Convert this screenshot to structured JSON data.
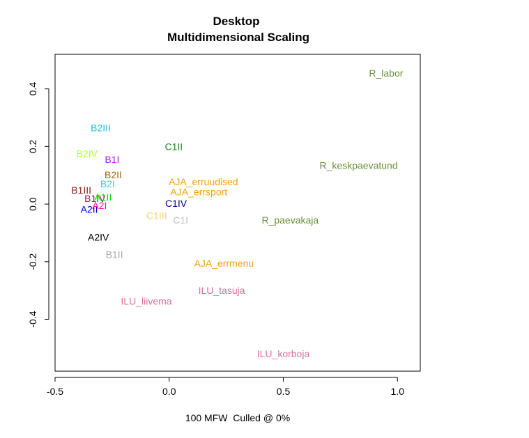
{
  "chart_data": {
    "type": "scatter",
    "title": "Desktop",
    "subtitle": "Multidimensional Scaling",
    "xlabel": "100 MFW  Culled @ 0%",
    "ylabel": "",
    "xlim": [
      -0.5,
      1.1
    ],
    "ylim": [
      -0.58,
      0.52
    ],
    "x_ticks": [
      -0.5,
      0.0,
      0.5,
      1.0
    ],
    "x_tick_labels": [
      "-0.5",
      "0.0",
      "0.5",
      "1.0"
    ],
    "y_ticks": [
      -0.4,
      -0.2,
      0.0,
      0.2,
      0.4
    ],
    "y_tick_labels": [
      "-0.4",
      "-0.2",
      "0.0",
      "0.2",
      "0.4"
    ],
    "grid": false,
    "legend": "none",
    "points": [
      {
        "label": "R_labor",
        "x": 0.95,
        "y": 0.455,
        "color": "#6b8e3d"
      },
      {
        "label": "R_keskpaevatund",
        "x": 0.83,
        "y": 0.135,
        "color": "#6b8e3d"
      },
      {
        "label": "R_paevakaja",
        "x": 0.53,
        "y": -0.055,
        "color": "#6b8e3d"
      },
      {
        "label": "B2III",
        "x": -0.3,
        "y": 0.265,
        "color": "#1ebcd6"
      },
      {
        "label": "B2IV",
        "x": -0.36,
        "y": 0.175,
        "color": "#adff2f"
      },
      {
        "label": "B1I",
        "x": -0.25,
        "y": 0.155,
        "color": "#a020f0"
      },
      {
        "label": "C1II",
        "x": 0.02,
        "y": 0.2,
        "color": "#228b22"
      },
      {
        "label": "B2II",
        "x": -0.245,
        "y": 0.102,
        "color": "#a0661c"
      },
      {
        "label": "B1III",
        "x": -0.385,
        "y": 0.048,
        "color": "#8b1a1a"
      },
      {
        "label": "B2I",
        "x": -0.27,
        "y": 0.07,
        "color": "#40c8c8"
      },
      {
        "label": "A2II",
        "x": -0.35,
        "y": -0.018,
        "color": "#0000cd"
      },
      {
        "label": "B1IV",
        "x": -0.325,
        "y": 0.02,
        "color": "#9b1d5a"
      },
      {
        "label": "A2I",
        "x": -0.305,
        "y": -0.005,
        "color": "#ff1493"
      },
      {
        "label": "A1II",
        "x": -0.29,
        "y": 0.025,
        "color": "#00e000"
      },
      {
        "label": "C1IV",
        "x": 0.03,
        "y": 0.003,
        "color": "#00008b"
      },
      {
        "label": "AJA_erruudised",
        "x": 0.15,
        "y": 0.078,
        "color": "#f0a010"
      },
      {
        "label": "AJA_errsport",
        "x": 0.13,
        "y": 0.042,
        "color": "#f0a010"
      },
      {
        "label": "C1III",
        "x": -0.055,
        "y": -0.04,
        "color": "#f5d37a"
      },
      {
        "label": "C1I",
        "x": 0.05,
        "y": -0.055,
        "color": "#c0c0c0"
      },
      {
        "label": "A2IV",
        "x": -0.31,
        "y": -0.115,
        "color": "#000000"
      },
      {
        "label": "B1II",
        "x": -0.24,
        "y": -0.175,
        "color": "#a9a9a9"
      },
      {
        "label": "AJA_errmenu",
        "x": 0.24,
        "y": -0.205,
        "color": "#f0a010"
      },
      {
        "label": "ILU_tasuja",
        "x": 0.23,
        "y": -0.3,
        "color": "#db7093"
      },
      {
        "label": "ILU_liivema",
        "x": -0.1,
        "y": -0.337,
        "color": "#db7093"
      },
      {
        "label": "ILU_korboja",
        "x": 0.5,
        "y": -0.52,
        "color": "#db7093"
      }
    ]
  }
}
